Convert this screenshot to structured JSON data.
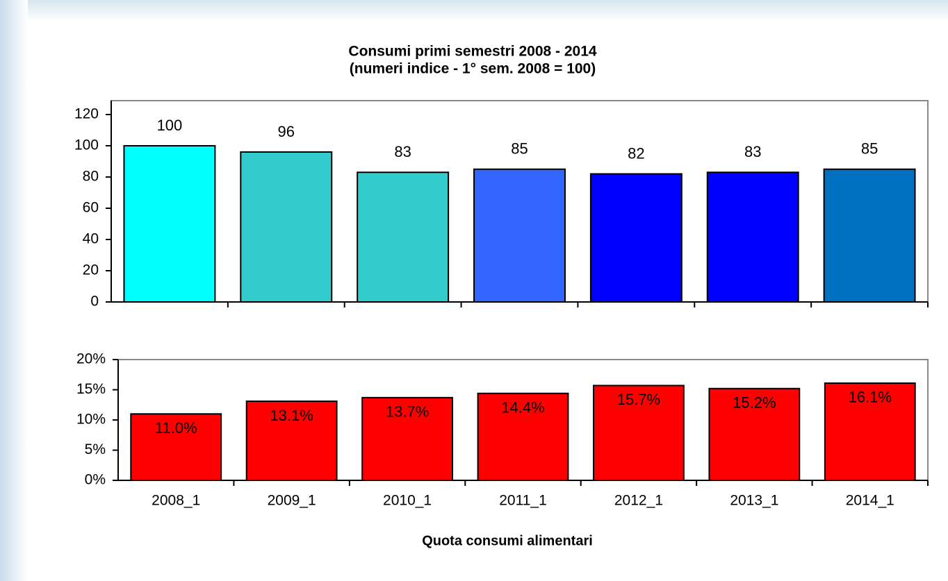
{
  "chart_data": [
    {
      "type": "bar",
      "title": "Consumi primi semestri 2008 - 2014",
      "subtitle": "(numeri indice - 1° sem. 2008 = 100)",
      "values": [
        100,
        96,
        83,
        85,
        82,
        83,
        85
      ],
      "colors": [
        "#00ffff",
        "#33cccc",
        "#33cccc",
        "#3366ff",
        "#0000ff",
        "#0000ff",
        "#0070c0"
      ],
      "ylim": [
        0,
        120
      ],
      "yticks": [
        0,
        20,
        40,
        60,
        80,
        100,
        120
      ],
      "value_label_position": "outside"
    },
    {
      "type": "bar",
      "categories": [
        "2008_1",
        "2009_1",
        "2010_1",
        "2011_1",
        "2012_1",
        "2013_1",
        "2014_1"
      ],
      "values": [
        11.0,
        13.1,
        13.7,
        14.4,
        15.7,
        15.2,
        16.1
      ],
      "value_labels": [
        "11.0%",
        "13.1%",
        "13.7%",
        "14.4%",
        "15.7%",
        "15.2%",
        "16.1%"
      ],
      "color": "#ff0000",
      "ylim": [
        0,
        20
      ],
      "yticks": [
        {
          "value": 0,
          "label": "0%"
        },
        {
          "value": 5,
          "label": "5%"
        },
        {
          "value": 10,
          "label": "10%"
        },
        {
          "value": 15,
          "label": "15%"
        },
        {
          "value": 20,
          "label": "20%"
        }
      ],
      "xlabel": "Quota consumi alimentari",
      "value_label_position": "inside"
    }
  ]
}
